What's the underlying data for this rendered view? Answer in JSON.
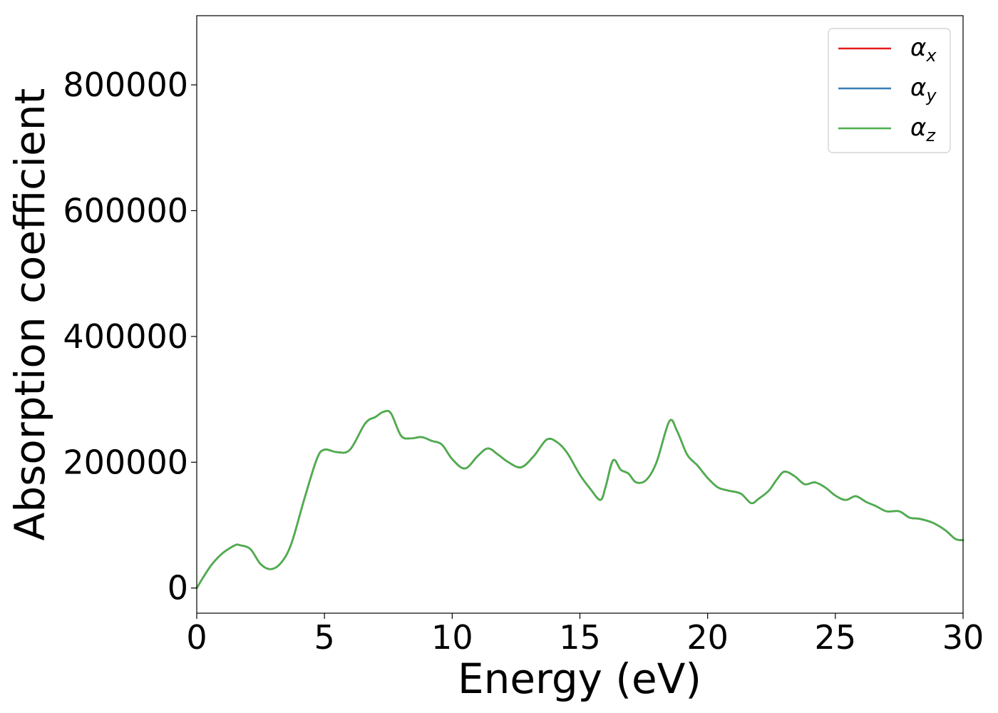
{
  "chart_data": {
    "type": "line",
    "title": "",
    "xlabel": "Energy (eV)",
    "ylabel": "Absorption coefficient",
    "xlim": [
      0,
      30
    ],
    "ylim": [
      -40000,
      910000
    ],
    "xticks": [
      0,
      5,
      10,
      15,
      20,
      25,
      30
    ],
    "yticks": [
      0,
      200000,
      400000,
      600000,
      800000
    ],
    "xtick_labels": [
      "0",
      "5",
      "10",
      "15",
      "20",
      "25",
      "30"
    ],
    "ytick_labels": [
      "0",
      "200000",
      "400000",
      "600000",
      "800000"
    ],
    "grid": false,
    "legend_position": "top-right",
    "x": [
      0,
      0.3,
      0.6,
      1.0,
      1.5,
      1.7,
      2.1,
      2.5,
      2.9,
      3.3,
      3.7,
      4.2,
      4.7,
      5.0,
      5.5,
      6.0,
      6.6,
      7.0,
      7.3,
      7.6,
      8.0,
      8.4,
      8.8,
      9.2,
      9.6,
      10.0,
      10.5,
      11.0,
      11.4,
      11.8,
      12.2,
      12.7,
      13.2,
      13.7,
      14.1,
      14.5,
      15.0,
      15.4,
      15.8,
      16.0,
      16.3,
      16.6,
      16.9,
      17.2,
      17.6,
      18.0,
      18.5,
      18.8,
      19.2,
      19.6,
      20.0,
      20.4,
      20.8,
      21.3,
      21.7,
      22.0,
      22.4,
      22.7,
      23.0,
      23.4,
      23.8,
      24.2,
      24.6,
      25.0,
      25.4,
      25.8,
      26.2,
      26.6,
      27.0,
      27.5,
      27.9,
      28.3,
      28.8,
      29.3,
      29.7,
      30.0
    ],
    "series": [
      {
        "name": "α_x",
        "color": "#e41a1c",
        "values": [
          0,
          20000,
          38000,
          55000,
          68000,
          68000,
          62000,
          38000,
          30000,
          40000,
          70000,
          140000,
          205000,
          220000,
          216000,
          220000,
          262000,
          272000,
          280000,
          278000,
          242000,
          238000,
          240000,
          234000,
          228000,
          205000,
          190000,
          210000,
          222000,
          212000,
          200000,
          192000,
          210000,
          236000,
          232000,
          215000,
          180000,
          158000,
          140000,
          160000,
          203000,
          188000,
          182000,
          168000,
          172000,
          200000,
          265000,
          250000,
          212000,
          195000,
          175000,
          160000,
          155000,
          150000,
          135000,
          142000,
          155000,
          172000,
          185000,
          178000,
          165000,
          168000,
          160000,
          147000,
          140000,
          146000,
          137000,
          130000,
          122000,
          122000,
          112000,
          110000,
          104000,
          92000,
          78000,
          76000
        ]
      },
      {
        "name": "α_y",
        "color": "#377eb8",
        "values": [
          0,
          20000,
          38000,
          55000,
          68000,
          68000,
          62000,
          38000,
          30000,
          40000,
          70000,
          140000,
          205000,
          220000,
          216000,
          220000,
          262000,
          272000,
          280000,
          278000,
          242000,
          238000,
          240000,
          234000,
          228000,
          205000,
          190000,
          210000,
          222000,
          212000,
          200000,
          192000,
          210000,
          236000,
          232000,
          215000,
          180000,
          158000,
          140000,
          160000,
          203000,
          188000,
          182000,
          168000,
          172000,
          200000,
          265000,
          250000,
          212000,
          195000,
          175000,
          160000,
          155000,
          150000,
          135000,
          142000,
          155000,
          172000,
          185000,
          178000,
          165000,
          168000,
          160000,
          147000,
          140000,
          146000,
          137000,
          130000,
          122000,
          122000,
          112000,
          110000,
          104000,
          92000,
          78000,
          76000
        ]
      },
      {
        "name": "α_z",
        "color": "#4daf4a",
        "values": [
          0,
          20000,
          38000,
          55000,
          68000,
          68000,
          62000,
          38000,
          30000,
          40000,
          70000,
          140000,
          205000,
          220000,
          216000,
          220000,
          262000,
          272000,
          280000,
          278000,
          242000,
          238000,
          240000,
          234000,
          228000,
          205000,
          190000,
          210000,
          222000,
          212000,
          200000,
          192000,
          210000,
          236000,
          232000,
          215000,
          180000,
          158000,
          140000,
          160000,
          203000,
          188000,
          182000,
          168000,
          172000,
          200000,
          265000,
          250000,
          212000,
          195000,
          175000,
          160000,
          155000,
          150000,
          135000,
          142000,
          155000,
          172000,
          185000,
          178000,
          165000,
          168000,
          160000,
          147000,
          140000,
          146000,
          137000,
          130000,
          122000,
          122000,
          112000,
          110000,
          104000,
          92000,
          78000,
          76000
        ]
      }
    ],
    "legend": [
      {
        "base": "α",
        "sub": "x",
        "color": "#e41a1c"
      },
      {
        "base": "α",
        "sub": "y",
        "color": "#377eb8"
      },
      {
        "base": "α",
        "sub": "z",
        "color": "#4daf4a"
      }
    ]
  }
}
